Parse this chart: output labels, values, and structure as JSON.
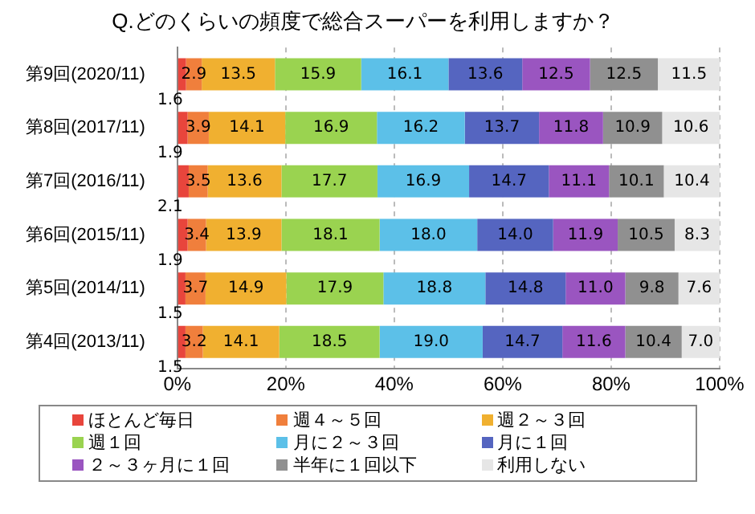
{
  "chart_data": {
    "type": "bar",
    "orientation": "horizontal",
    "stacked": true,
    "title": "Q.どのくらいの頻度で総合スーパーを利用しますか？",
    "categories": [
      "第9回(2020/11)",
      "第8回(2017/11)",
      "第7回(2016/11)",
      "第6回(2015/11)",
      "第5回(2014/11)",
      "第4回(2013/11)"
    ],
    "series": [
      {
        "name": "ほとんど毎日",
        "color": "#e8453c",
        "values": [
          1.6,
          1.9,
          2.1,
          1.9,
          1.5,
          1.5
        ],
        "value_labels": [
          "1.6",
          "1.9",
          "2.1",
          "1.9",
          "1.5",
          "1.5"
        ]
      },
      {
        "name": "週４～５回",
        "color": "#f07f3c",
        "values": [
          2.9,
          3.9,
          3.5,
          3.4,
          3.7,
          3.2
        ],
        "value_labels": [
          "2.9",
          "3.9",
          "3.5",
          "3.4",
          "3.7",
          "3.2"
        ]
      },
      {
        "name": "週２～３回",
        "color": "#f0b030",
        "values": [
          13.5,
          14.1,
          13.6,
          13.9,
          14.9,
          14.1
        ],
        "value_labels": [
          "13.5",
          "14.1",
          "13.6",
          "13.9",
          "14.9",
          "14.1"
        ]
      },
      {
        "name": "週１回",
        "color": "#9ad350",
        "values": [
          15.9,
          16.9,
          17.7,
          18.1,
          17.9,
          18.5
        ],
        "value_labels": [
          "15.9",
          "16.9",
          "17.7",
          "18.1",
          "17.9",
          "18.5"
        ]
      },
      {
        "name": "月に２～３回",
        "color": "#5cc0e8",
        "values": [
          16.1,
          16.2,
          16.9,
          18.0,
          18.8,
          19.0
        ],
        "value_labels": [
          "16.1",
          "16.2",
          "16.9",
          "18.0",
          "18.8",
          "19.0"
        ]
      },
      {
        "name": "月に１回",
        "color": "#5565c0",
        "values": [
          13.6,
          13.7,
          14.7,
          14.0,
          14.8,
          14.7
        ],
        "value_labels": [
          "13.6",
          "13.7",
          "14.7",
          "14.0",
          "14.8",
          "14.7"
        ]
      },
      {
        "name": "２～３ヶ月に１回",
        "color": "#9a55c0",
        "values": [
          12.5,
          11.8,
          11.1,
          11.9,
          11.0,
          11.6
        ],
        "value_labels": [
          "12.5",
          "11.8",
          "11.1",
          "11.9",
          "11.0",
          "11.6"
        ]
      },
      {
        "name": "半年に１回以下",
        "color": "#909090",
        "values": [
          12.5,
          10.9,
          10.1,
          10.5,
          9.8,
          10.4
        ],
        "value_labels": [
          "12.5",
          "10.9",
          "10.1",
          "10.5",
          "9.8",
          "10.4"
        ]
      },
      {
        "name": "利用しない",
        "color": "#e6e6e6",
        "values": [
          11.5,
          10.6,
          10.4,
          8.3,
          7.6,
          7.0
        ],
        "value_labels": [
          "11.5",
          "10.6",
          "10.4",
          "8.3",
          "7.6",
          "7.0"
        ]
      }
    ],
    "xlim": [
      0,
      100
    ],
    "xticks": [
      {
        "value": 0,
        "label": "0%"
      },
      {
        "value": 20,
        "label": "20%"
      },
      {
        "value": 40,
        "label": "40%"
      },
      {
        "value": 60,
        "label": "60%"
      },
      {
        "value": 80,
        "label": "80%"
      },
      {
        "value": 100,
        "label": "100%"
      }
    ],
    "grid": "x",
    "legend": "bottom"
  }
}
